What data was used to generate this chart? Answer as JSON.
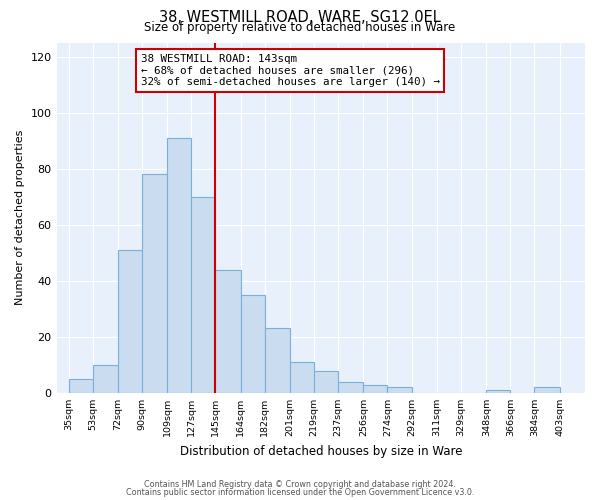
{
  "title": "38, WESTMILL ROAD, WARE, SG12 0EL",
  "subtitle": "Size of property relative to detached houses in Ware",
  "xlabel": "Distribution of detached houses by size in Ware",
  "ylabel": "Number of detached properties",
  "bar_left_edges": [
    35,
    53,
    72,
    90,
    109,
    127,
    145,
    164,
    182,
    201,
    219,
    237,
    256,
    274,
    292,
    311,
    329,
    348,
    366,
    384
  ],
  "bar_widths": [
    18,
    19,
    18,
    19,
    18,
    18,
    19,
    18,
    19,
    18,
    18,
    19,
    18,
    18,
    19,
    18,
    19,
    18,
    18,
    19
  ],
  "bar_heights": [
    5,
    10,
    51,
    78,
    91,
    70,
    44,
    35,
    23,
    11,
    8,
    4,
    3,
    2,
    0,
    0,
    0,
    1,
    0,
    2
  ],
  "tick_labels": [
    "35sqm",
    "53sqm",
    "72sqm",
    "90sqm",
    "109sqm",
    "127sqm",
    "145sqm",
    "164sqm",
    "182sqm",
    "201sqm",
    "219sqm",
    "237sqm",
    "256sqm",
    "274sqm",
    "292sqm",
    "311sqm",
    "329sqm",
    "348sqm",
    "366sqm",
    "384sqm",
    "403sqm"
  ],
  "tick_positions": [
    35,
    53,
    72,
    90,
    109,
    127,
    145,
    164,
    182,
    201,
    219,
    237,
    256,
    274,
    292,
    311,
    329,
    348,
    366,
    384,
    403
  ],
  "bar_facecolor": "#c9dcf0",
  "bar_edgecolor": "#7ab0d8",
  "vline_x": 145,
  "vline_color": "#cc0000",
  "annotation_lines": [
    "38 WESTMILL ROAD: 143sqm",
    "← 68% of detached houses are smaller (296)",
    "32% of semi-detached houses are larger (140) →"
  ],
  "ylim": [
    0,
    125
  ],
  "yticks": [
    0,
    20,
    40,
    60,
    80,
    100,
    120
  ],
  "bg_color": "#e8f0fb",
  "footnote1": "Contains HM Land Registry data © Crown copyright and database right 2024.",
  "footnote2": "Contains public sector information licensed under the Open Government Licence v3.0."
}
